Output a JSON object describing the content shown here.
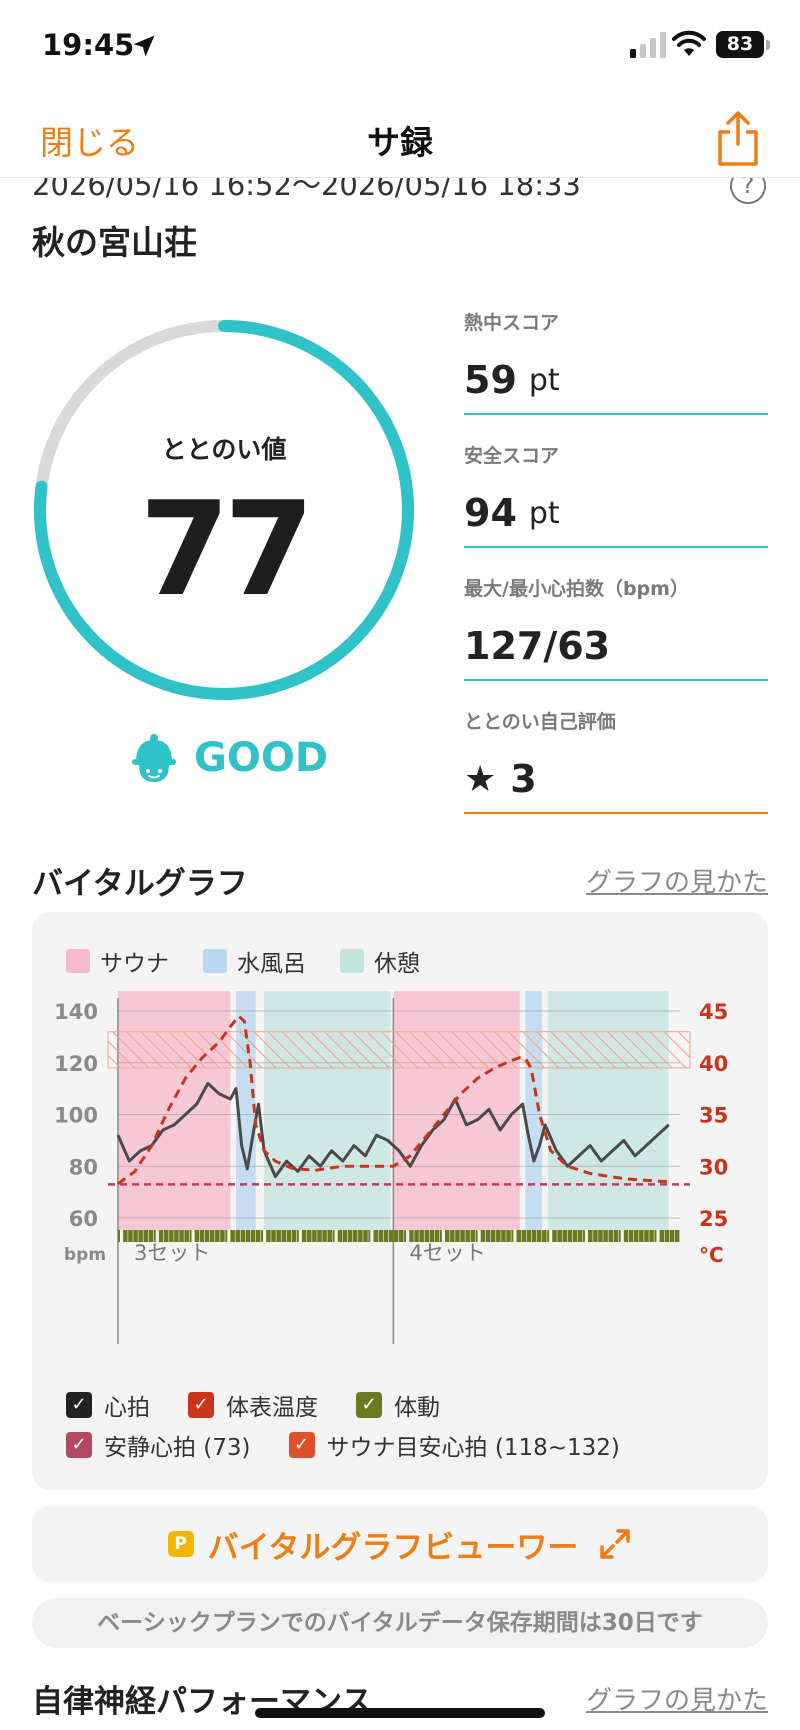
{
  "status": {
    "time": "19:45",
    "battery": "83"
  },
  "nav": {
    "close_label": "閉じる",
    "title": "サ録"
  },
  "session": {
    "date_range": "2026/05/16 16:52〜2026/05/16 18:33",
    "place": "秋の宮山荘",
    "help": "?"
  },
  "gauge": {
    "label": "ととのい値",
    "value": "77",
    "fill_fraction": 0.77,
    "rating": "GOOD"
  },
  "metrics": [
    {
      "label": "熱中スコア",
      "value": "59",
      "unit": "pt"
    },
    {
      "label": "安全スコア",
      "value": "94",
      "unit": "pt"
    },
    {
      "label": "最大/最小心拍数（bpm）",
      "value": "127/63",
      "unit": ""
    },
    {
      "label": "ととのい自己評価",
      "value": "3",
      "unit": ""
    }
  ],
  "vital_section": {
    "title": "バイタルグラフ",
    "help_link": "グラフの見かた"
  },
  "legend_top": [
    {
      "label": "サウナ",
      "color": "#f7b9cc"
    },
    {
      "label": "水風呂",
      "color": "#b8d6f2"
    },
    {
      "label": "休憩",
      "color": "#c4e4e0"
    }
  ],
  "chart_data": {
    "type": "line",
    "x_axis_labels": [
      "3セット",
      "4セット"
    ],
    "y_left": {
      "ticks": [
        "140",
        "120",
        "100",
        "80",
        "60"
      ],
      "unit": "bpm",
      "range": [
        60,
        140
      ]
    },
    "y_right": {
      "ticks": [
        "45",
        "40",
        "35",
        "30",
        "25"
      ],
      "unit": "°C",
      "range": [
        25,
        45
      ]
    },
    "phases": [
      {
        "type": "サウナ",
        "start": 0.0,
        "end": 0.2
      },
      {
        "type": "水風呂",
        "start": 0.21,
        "end": 0.245
      },
      {
        "type": "休憩",
        "start": 0.26,
        "end": 0.485
      },
      {
        "type": "サウナ",
        "start": 0.49,
        "end": 0.715
      },
      {
        "type": "水風呂",
        "start": 0.725,
        "end": 0.755
      },
      {
        "type": "休憩",
        "start": 0.765,
        "end": 0.98
      }
    ],
    "series": [
      {
        "name": "心拍",
        "color": "#4a4a4a",
        "x": [
          0.0,
          0.02,
          0.04,
          0.06,
          0.08,
          0.1,
          0.12,
          0.14,
          0.16,
          0.18,
          0.2,
          0.21,
          0.22,
          0.23,
          0.24,
          0.25,
          0.26,
          0.28,
          0.3,
          0.32,
          0.34,
          0.36,
          0.38,
          0.4,
          0.42,
          0.44,
          0.46,
          0.48,
          0.5,
          0.52,
          0.54,
          0.56,
          0.58,
          0.6,
          0.62,
          0.64,
          0.66,
          0.68,
          0.7,
          0.72,
          0.73,
          0.74,
          0.75,
          0.76,
          0.78,
          0.8,
          0.82,
          0.84,
          0.86,
          0.88,
          0.9,
          0.92,
          0.94,
          0.96,
          0.98
        ],
        "values": [
          92,
          82,
          86,
          88,
          94,
          96,
          100,
          104,
          112,
          108,
          106,
          110,
          88,
          79,
          92,
          104,
          86,
          76,
          82,
          78,
          84,
          80,
          86,
          82,
          88,
          84,
          92,
          90,
          86,
          80,
          88,
          94,
          98,
          106,
          96,
          98,
          102,
          94,
          100,
          104,
          92,
          82,
          88,
          96,
          86,
          80,
          84,
          88,
          82,
          86,
          90,
          84,
          88,
          92,
          96
        ]
      },
      {
        "name": "体表温度",
        "color": "#c9341a",
        "x": [
          0.0,
          0.03,
          0.06,
          0.09,
          0.12,
          0.15,
          0.18,
          0.2,
          0.215,
          0.225,
          0.235,
          0.245,
          0.26,
          0.28,
          0.31,
          0.35,
          0.4,
          0.45,
          0.49,
          0.52,
          0.55,
          0.58,
          0.61,
          0.64,
          0.67,
          0.7,
          0.715,
          0.725,
          0.735,
          0.75,
          0.77,
          0.8,
          0.84,
          0.9,
          0.95,
          0.98
        ],
        "values": [
          28.3,
          29.5,
          32,
          35.5,
          38.5,
          40.5,
          42,
          43.5,
          44.5,
          44.0,
          40,
          34,
          31.5,
          30.5,
          29.8,
          29.6,
          30,
          30.0,
          30.0,
          31,
          33,
          35,
          37,
          38.5,
          39.5,
          40.2,
          40.5,
          40.4,
          39.5,
          35,
          31.5,
          30,
          29.3,
          28.8,
          28.6,
          28.5
        ]
      },
      {
        "name": "安静心拍 (73)",
        "color": "#c23a5a",
        "value": 73
      },
      {
        "name": "サウナ目安心拍 (118~132)",
        "color": "#e05a2a",
        "range": [
          118,
          132
        ]
      }
    ],
    "annotations": [
      "3セット",
      "4セット"
    ],
    "grid": true
  },
  "legend_bottom": [
    {
      "label": "心拍",
      "color": "#222222"
    },
    {
      "label": "体表温度",
      "color": "#c9341a"
    },
    {
      "label": "体動",
      "color": "#6b7a1f"
    },
    {
      "label": "安静心拍 (73)",
      "color": "#b34862"
    },
    {
      "label": "サウナ目安心拍 (118~132)",
      "color": "#e0502a"
    }
  ],
  "viewer_button": {
    "badge": "P",
    "label": "バイタルグラフビューワー"
  },
  "info_pill": "ベーシックプランでのバイタルデータ保存期間は30日です",
  "next_section": {
    "title": "自律神経パフォーマンス",
    "help_link": "グラフの見かた"
  }
}
